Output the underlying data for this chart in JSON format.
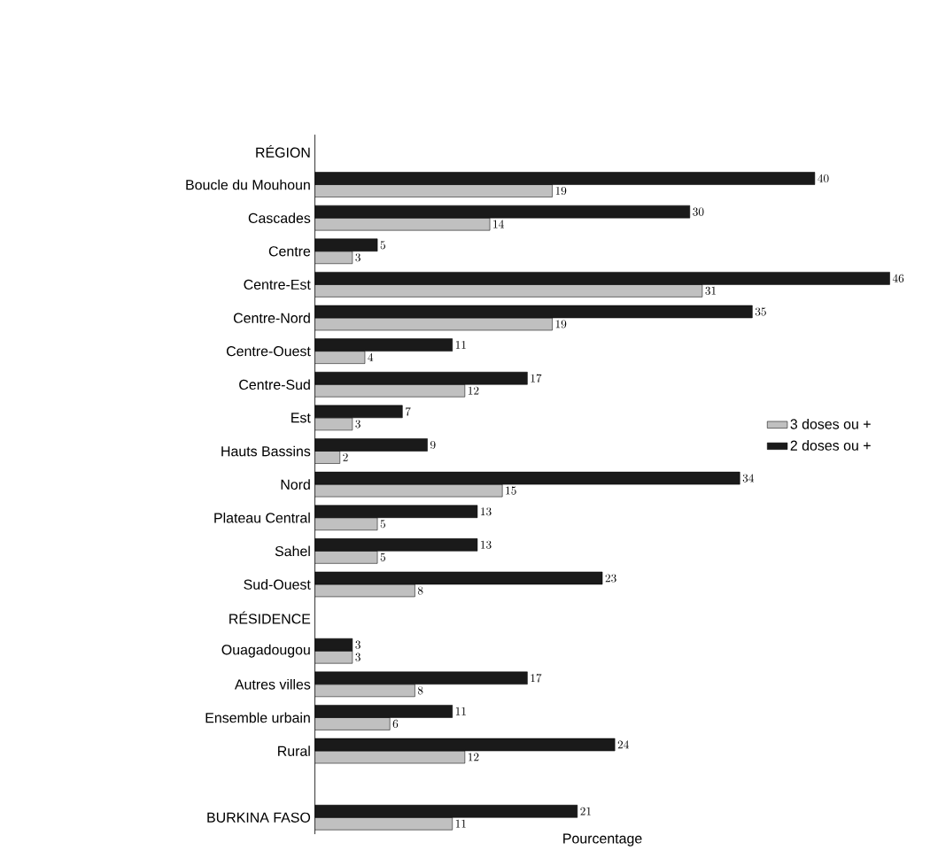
{
  "chart_data": {
    "type": "bar",
    "orientation": "horizontal",
    "xlabel": "Pourcentage",
    "categories": [
      "RÉGION",
      "Boucle du Mouhoun",
      "Cascades",
      "Centre",
      "Centre-Est",
      "Centre-Nord",
      "Centre-Ouest",
      "Centre-Sud",
      "Est",
      "Hauts Bassins",
      "Nord",
      "Plateau Central",
      "Sahel",
      "Sud-Ouest",
      "RÉSIDENCE",
      "Ouagadougou",
      "Autres villes",
      "Ensemble urbain",
      "Rural",
      null,
      "BURKINA FASO"
    ],
    "series": [
      {
        "name": "3 doses ou +",
        "color": "#c0c0c0",
        "values": [
          null,
          19,
          14,
          3,
          31,
          19,
          4,
          12,
          3,
          2,
          15,
          5,
          5,
          8,
          null,
          3,
          8,
          6,
          12,
          null,
          11
        ]
      },
      {
        "name": "2 doses ou +",
        "color": "#1a1a1a",
        "values": [
          null,
          40,
          30,
          5,
          46,
          35,
          11,
          17,
          7,
          9,
          34,
          13,
          13,
          23,
          null,
          3,
          17,
          11,
          24,
          null,
          21
        ]
      }
    ],
    "data_labels": true,
    "legend": "right"
  }
}
